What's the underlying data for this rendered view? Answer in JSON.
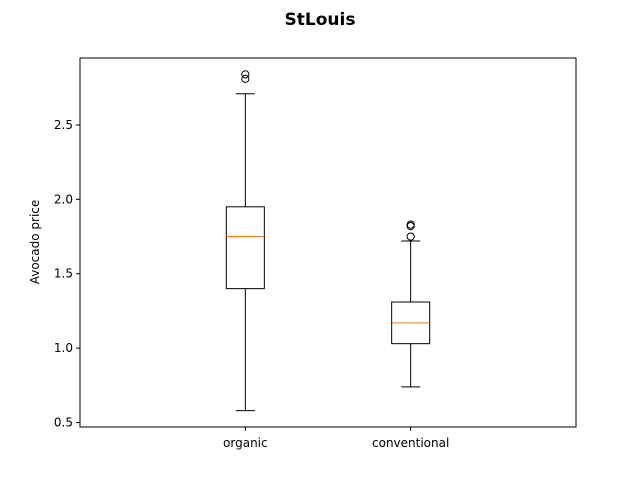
{
  "chart_data": {
    "type": "box",
    "title": "StLouis",
    "xlabel": "",
    "ylabel": "Avocado price",
    "ylim": [
      0.47,
      2.95
    ],
    "yticks": [
      "0.5",
      "1.0",
      "1.5",
      "2.0",
      "2.5"
    ],
    "grid": false,
    "categories": [
      "organic",
      "conventional"
    ],
    "boxes": [
      {
        "category": "organic",
        "whisker_low": 0.58,
        "q1": 1.4,
        "median": 1.75,
        "q3": 1.95,
        "whisker_high": 2.71,
        "outliers": [
          2.81,
          2.84
        ]
      },
      {
        "category": "conventional",
        "whisker_low": 0.74,
        "q1": 1.03,
        "median": 1.17,
        "q3": 1.31,
        "whisker_high": 1.72,
        "outliers": [
          1.75,
          1.82,
          1.83
        ]
      }
    ],
    "colors": {
      "box": "#000000",
      "median": "#ff7f0e",
      "outlier": "#000000"
    }
  }
}
